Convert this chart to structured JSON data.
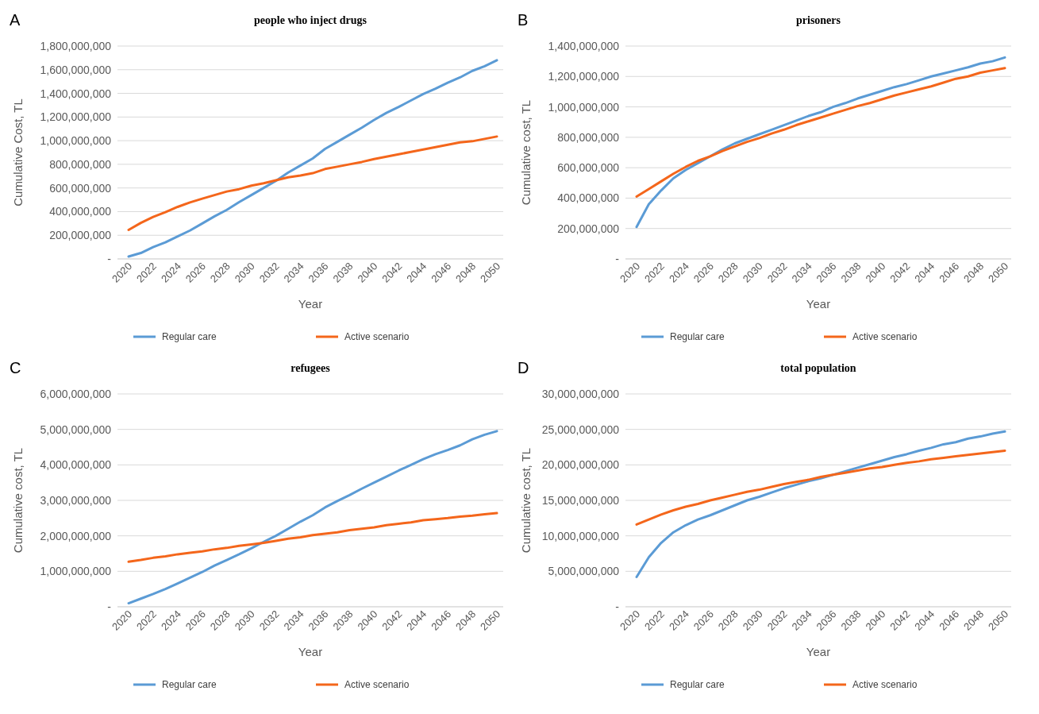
{
  "chart_data": [
    {
      "type": "line",
      "title": "people who inject drugs",
      "xlabel": "Year",
      "ylabel": "Cumulative Cost, TL",
      "annotations": [
        "A"
      ],
      "grid": "y",
      "legend": "bottom",
      "line_style": "solid",
      "marker": "none",
      "categories": [
        "2020",
        null,
        "2022",
        null,
        "2024",
        null,
        "2026",
        null,
        "2028",
        null,
        "2030",
        null,
        "2032",
        null,
        "2034",
        null,
        "2036",
        null,
        "2038",
        null,
        "2040",
        null,
        "2042",
        null,
        "2044",
        null,
        "2046",
        null,
        "2048",
        null,
        "2050"
      ],
      "ylim": [
        0,
        1800000000
      ],
      "yticks": [
        {
          "value": 0,
          "label": "-"
        },
        {
          "value": 200000000,
          "label": "200,000,000"
        },
        {
          "value": 400000000,
          "label": "400,000,000"
        },
        {
          "value": 600000000,
          "label": "600,000,000"
        },
        {
          "value": 800000000,
          "label": "800,000,000"
        },
        {
          "value": 1000000000,
          "label": "1,000,000,000"
        },
        {
          "value": 1200000000,
          "label": "1,200,000,000"
        },
        {
          "value": 1400000000,
          "label": "1,400,000,000"
        },
        {
          "value": 1600000000,
          "label": "1,600,000,000"
        },
        {
          "value": 1800000000,
          "label": "1,800,000,000"
        }
      ],
      "series": [
        {
          "name": "Regular care",
          "color": "#5b9bd5",
          "values": [
            20000000,
            50000000,
            100000000,
            140000000,
            190000000,
            240000000,
            300000000,
            360000000,
            415000000,
            480000000,
            540000000,
            600000000,
            660000000,
            730000000,
            790000000,
            850000000,
            930000000,
            990000000,
            1050000000,
            1110000000,
            1175000000,
            1235000000,
            1285000000,
            1340000000,
            1395000000,
            1440000000,
            1490000000,
            1535000000,
            1590000000,
            1630000000,
            1680000000
          ]
        },
        {
          "name": "Active scenario",
          "color": "#f4661b",
          "values": [
            245000000,
            305000000,
            355000000,
            395000000,
            440000000,
            478000000,
            510000000,
            540000000,
            570000000,
            590000000,
            620000000,
            640000000,
            665000000,
            690000000,
            705000000,
            725000000,
            760000000,
            780000000,
            800000000,
            820000000,
            845000000,
            865000000,
            885000000,
            905000000,
            925000000,
            945000000,
            965000000,
            985000000,
            995000000,
            1015000000,
            1035000000
          ]
        }
      ]
    },
    {
      "type": "line",
      "title": "prisoners",
      "xlabel": "Year",
      "ylabel": "Cumulative cost, TL",
      "annotations": [
        "B"
      ],
      "grid": "y",
      "legend": "bottom",
      "line_style": "solid",
      "marker": "none",
      "categories": [
        "2020",
        null,
        "2022",
        null,
        "2024",
        null,
        "2026",
        null,
        "2028",
        null,
        "2030",
        null,
        "2032",
        null,
        "2034",
        null,
        "2036",
        null,
        "2038",
        null,
        "2040",
        null,
        "2042",
        null,
        "2044",
        null,
        "2046",
        null,
        "2048",
        null,
        "2050"
      ],
      "ylim": [
        0,
        1400000000
      ],
      "yticks": [
        {
          "value": 0,
          "label": "-"
        },
        {
          "value": 200000000,
          "label": "200,000,000"
        },
        {
          "value": 400000000,
          "label": "400,000,000"
        },
        {
          "value": 600000000,
          "label": "600,000,000"
        },
        {
          "value": 800000000,
          "label": "800,000,000"
        },
        {
          "value": 1000000000,
          "label": "1,000,000,000"
        },
        {
          "value": 1200000000,
          "label": "1,200,000,000"
        },
        {
          "value": 1400000000,
          "label": "1,400,000,000"
        }
      ],
      "series": [
        {
          "name": "Regular care",
          "color": "#5b9bd5",
          "values": [
            210000000,
            360000000,
            450000000,
            530000000,
            585000000,
            630000000,
            675000000,
            720000000,
            760000000,
            790000000,
            820000000,
            850000000,
            880000000,
            910000000,
            940000000,
            965000000,
            1000000000,
            1025000000,
            1055000000,
            1080000000,
            1105000000,
            1130000000,
            1150000000,
            1175000000,
            1200000000,
            1220000000,
            1240000000,
            1260000000,
            1285000000,
            1300000000,
            1325000000
          ]
        },
        {
          "name": "Active scenario",
          "color": "#f4661b",
          "values": [
            410000000,
            460000000,
            510000000,
            560000000,
            605000000,
            645000000,
            675000000,
            710000000,
            740000000,
            770000000,
            795000000,
            825000000,
            850000000,
            880000000,
            905000000,
            930000000,
            955000000,
            980000000,
            1005000000,
            1025000000,
            1050000000,
            1075000000,
            1095000000,
            1115000000,
            1135000000,
            1160000000,
            1185000000,
            1200000000,
            1225000000,
            1240000000,
            1255000000
          ]
        }
      ]
    },
    {
      "type": "line",
      "title": "refugees",
      "xlabel": "Year",
      "ylabel": "Cumulative cost, TL",
      "annotations": [
        "C"
      ],
      "grid": "y",
      "legend": "bottom",
      "line_style": "solid",
      "marker": "none",
      "categories": [
        "2020",
        null,
        "2022",
        null,
        "2024",
        null,
        "2026",
        null,
        "2028",
        null,
        "2030",
        null,
        "2032",
        null,
        "2034",
        null,
        "2036",
        null,
        "2038",
        null,
        "2040",
        null,
        "2042",
        null,
        "2044",
        null,
        "2046",
        null,
        "2048",
        null,
        "2050"
      ],
      "ylim": [
        0,
        6000000000
      ],
      "yticks": [
        {
          "value": 0,
          "label": "-"
        },
        {
          "value": 1000000000,
          "label": "1,000,000,000"
        },
        {
          "value": 2000000000,
          "label": "2,000,000,000"
        },
        {
          "value": 3000000000,
          "label": "3,000,000,000"
        },
        {
          "value": 4000000000,
          "label": "4,000,000,000"
        },
        {
          "value": 5000000000,
          "label": "5,000,000,000"
        },
        {
          "value": 6000000000,
          "label": "6,000,000,000"
        }
      ],
      "series": [
        {
          "name": "Regular care",
          "color": "#5b9bd5",
          "values": [
            100000000,
            230000000,
            360000000,
            500000000,
            660000000,
            820000000,
            980000000,
            1160000000,
            1320000000,
            1480000000,
            1650000000,
            1830000000,
            2000000000,
            2200000000,
            2400000000,
            2580000000,
            2800000000,
            2980000000,
            3150000000,
            3330000000,
            3500000000,
            3670000000,
            3840000000,
            4000000000,
            4160000000,
            4300000000,
            4420000000,
            4550000000,
            4720000000,
            4850000000,
            4950000000
          ]
        },
        {
          "name": "Active scenario",
          "color": "#f4661b",
          "values": [
            1270000000,
            1320000000,
            1380000000,
            1420000000,
            1480000000,
            1520000000,
            1560000000,
            1620000000,
            1660000000,
            1720000000,
            1760000000,
            1800000000,
            1860000000,
            1920000000,
            1960000000,
            2020000000,
            2060000000,
            2100000000,
            2160000000,
            2200000000,
            2240000000,
            2300000000,
            2340000000,
            2380000000,
            2440000000,
            2470000000,
            2500000000,
            2540000000,
            2570000000,
            2610000000,
            2640000000
          ]
        }
      ]
    },
    {
      "type": "line",
      "title": "total population",
      "xlabel": "Year",
      "ylabel": "Cumulative cost, TL",
      "annotations": [
        "D"
      ],
      "grid": "y",
      "legend": "bottom",
      "line_style": "solid",
      "marker": "none",
      "categories": [
        "2020",
        null,
        "2022",
        null,
        "2024",
        null,
        "2026",
        null,
        "2028",
        null,
        "2030",
        null,
        "2032",
        null,
        "2034",
        null,
        "2036",
        null,
        "2038",
        null,
        "2040",
        null,
        "2042",
        null,
        "2044",
        null,
        "2046",
        null,
        "2048",
        null,
        "2050"
      ],
      "ylim": [
        0,
        30000000000
      ],
      "yticks": [
        {
          "value": 0,
          "label": "-"
        },
        {
          "value": 5000000000,
          "label": "5,000,000,000"
        },
        {
          "value": 10000000000,
          "label": "10,000,000,000"
        },
        {
          "value": 15000000000,
          "label": "15,000,000,000"
        },
        {
          "value": 20000000000,
          "label": "20,000,000,000"
        },
        {
          "value": 25000000000,
          "label": "25,000,000,000"
        },
        {
          "value": 30000000000,
          "label": "30,000,000,000"
        }
      ],
      "series": [
        {
          "name": "Regular care",
          "color": "#5b9bd5",
          "values": [
            4200000000,
            7000000000,
            9000000000,
            10500000000,
            11500000000,
            12300000000,
            12900000000,
            13600000000,
            14300000000,
            15000000000,
            15500000000,
            16100000000,
            16700000000,
            17200000000,
            17700000000,
            18100000000,
            18600000000,
            19100000000,
            19600000000,
            20100000000,
            20600000000,
            21100000000,
            21500000000,
            22000000000,
            22400000000,
            22900000000,
            23200000000,
            23700000000,
            24000000000,
            24400000000,
            24700000000
          ]
        },
        {
          "name": "Active scenario",
          "color": "#f4661b",
          "values": [
            11600000000,
            12300000000,
            13000000000,
            13600000000,
            14100000000,
            14500000000,
            15000000000,
            15400000000,
            15800000000,
            16200000000,
            16500000000,
            16900000000,
            17300000000,
            17600000000,
            17900000000,
            18300000000,
            18600000000,
            18900000000,
            19200000000,
            19500000000,
            19700000000,
            20000000000,
            20300000000,
            20500000000,
            20800000000,
            21000000000,
            21200000000,
            21400000000,
            21600000000,
            21800000000,
            22000000000
          ]
        }
      ]
    }
  ]
}
